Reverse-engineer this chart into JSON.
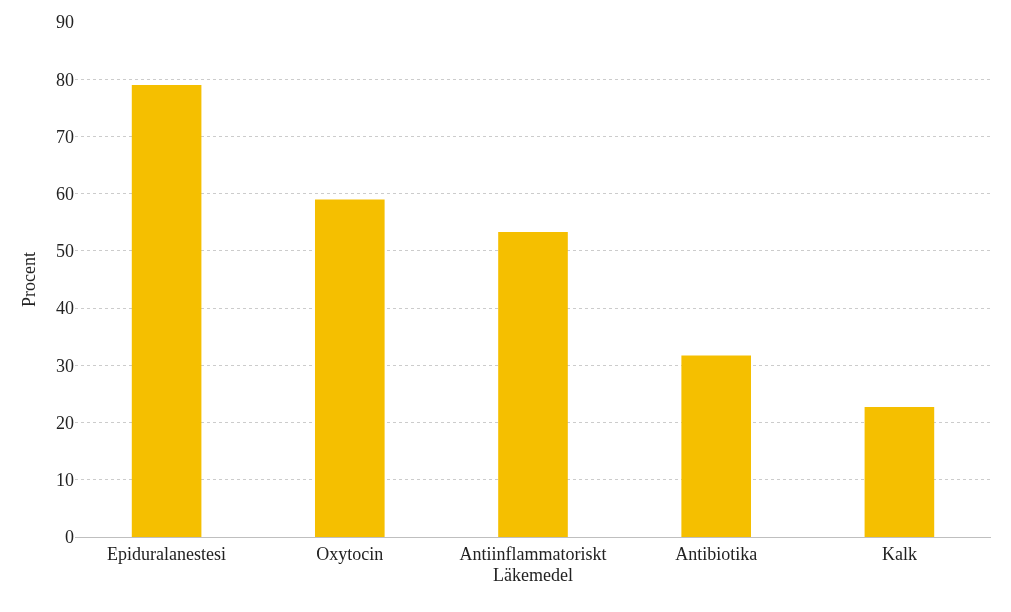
{
  "chart_data": {
    "type": "bar",
    "xlabel": "Läkemedel",
    "ylabel": "Procent",
    "categories": [
      "Epiduralanestesi",
      "Oxytocin",
      "Antiinflammatoriskt",
      "Antibiotika",
      "Kalk"
    ],
    "values": [
      79,
      59,
      53.3,
      31.7,
      22.7
    ],
    "color": "#f5bf00",
    "ylim": [
      0,
      90
    ],
    "yticks": [
      0,
      10,
      20,
      30,
      40,
      50,
      60,
      70,
      80,
      90
    ],
    "grid": "y"
  }
}
